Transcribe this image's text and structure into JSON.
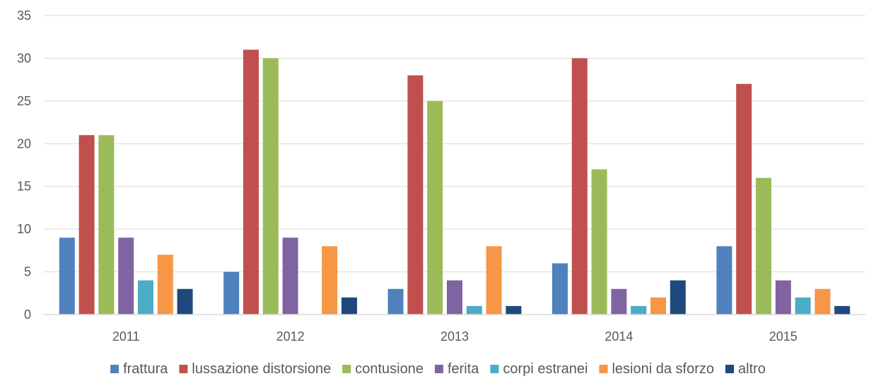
{
  "chart_data": {
    "type": "bar",
    "title": "",
    "xlabel": "",
    "ylabel": "",
    "categories": [
      "2011",
      "2012",
      "2013",
      "2014",
      "2015"
    ],
    "ylim": [
      0,
      35
    ],
    "yticks": [
      0,
      5,
      10,
      15,
      20,
      25,
      30,
      35
    ],
    "grid": true,
    "legend_position": "bottom",
    "series": [
      {
        "name": "frattura",
        "color": "#4F81BD",
        "values": [
          9,
          5,
          3,
          6,
          8
        ]
      },
      {
        "name": "lussazione distorsione",
        "color": "#C0504D",
        "values": [
          21,
          31,
          28,
          30,
          27
        ]
      },
      {
        "name": "contusione",
        "color": "#9BBB59",
        "values": [
          21,
          30,
          25,
          17,
          16
        ]
      },
      {
        "name": "ferita",
        "color": "#8064A2",
        "values": [
          9,
          9,
          4,
          3,
          4
        ]
      },
      {
        "name": "corpi estranei",
        "color": "#4BACC6",
        "values": [
          4,
          0,
          1,
          1,
          2
        ]
      },
      {
        "name": "lesioni da sforzo",
        "color": "#F79646",
        "values": [
          7,
          8,
          8,
          2,
          3
        ]
      },
      {
        "name": "altro",
        "color": "#1F497D",
        "values": [
          3,
          2,
          1,
          4,
          1
        ]
      }
    ]
  }
}
